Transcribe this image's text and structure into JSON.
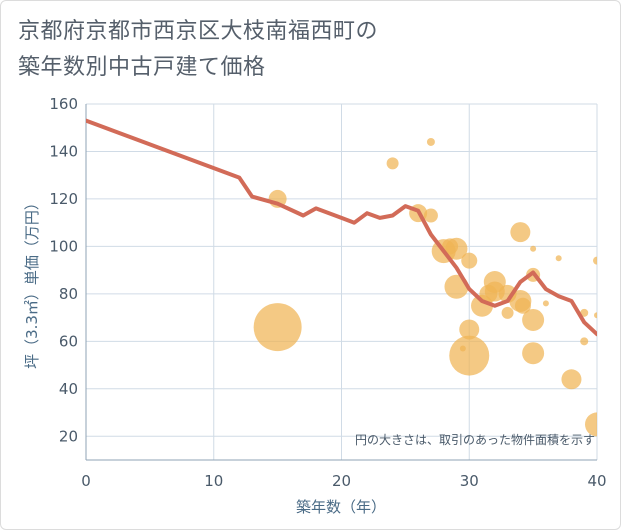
{
  "title_line1": "京都府京都市西京区大枝南福西町の",
  "title_line2": "築年数別中古戸建て価格",
  "chart_data": {
    "type": "scatter",
    "xlabel": "築年数（年）",
    "ylabel": "坪（3.3㎡）単価（万円）",
    "xlim": [
      0,
      40
    ],
    "ylim": [
      10,
      160
    ],
    "x_ticks": [
      0,
      10,
      20,
      30,
      40
    ],
    "y_ticks": [
      20,
      40,
      60,
      80,
      100,
      120,
      140,
      160
    ],
    "grid": true,
    "note": "円の大きさは、取引のあった物件面積を示す",
    "colors": {
      "bubble": "#f0b455",
      "line": "#d26b58",
      "grid": "#d0dbe6"
    },
    "points": [
      {
        "x": 15,
        "y": 66,
        "s": 24
      },
      {
        "x": 15,
        "y": 120,
        "s": 9
      },
      {
        "x": 24,
        "y": 135,
        "s": 6
      },
      {
        "x": 27,
        "y": 144,
        "s": 4
      },
      {
        "x": 26,
        "y": 114,
        "s": 9
      },
      {
        "x": 27,
        "y": 113,
        "s": 7
      },
      {
        "x": 28,
        "y": 98,
        "s": 12
      },
      {
        "x": 28.5,
        "y": 100,
        "s": 8
      },
      {
        "x": 29,
        "y": 99,
        "s": 11
      },
      {
        "x": 29,
        "y": 83,
        "s": 12
      },
      {
        "x": 29.5,
        "y": 57,
        "s": 3
      },
      {
        "x": 30,
        "y": 94,
        "s": 8
      },
      {
        "x": 30,
        "y": 54,
        "s": 20
      },
      {
        "x": 30,
        "y": 65,
        "s": 10
      },
      {
        "x": 31,
        "y": 75,
        "s": 11
      },
      {
        "x": 31.5,
        "y": 80,
        "s": 9
      },
      {
        "x": 32,
        "y": 85,
        "s": 11
      },
      {
        "x": 32,
        "y": 81,
        "s": 10
      },
      {
        "x": 33,
        "y": 80,
        "s": 9
      },
      {
        "x": 33,
        "y": 72,
        "s": 6
      },
      {
        "x": 34,
        "y": 106,
        "s": 10
      },
      {
        "x": 34,
        "y": 77,
        "s": 11
      },
      {
        "x": 34.2,
        "y": 75,
        "s": 8
      },
      {
        "x": 35,
        "y": 99,
        "s": 3
      },
      {
        "x": 35,
        "y": 88,
        "s": 7
      },
      {
        "x": 35,
        "y": 69,
        "s": 11
      },
      {
        "x": 35,
        "y": 55,
        "s": 11
      },
      {
        "x": 36,
        "y": 76,
        "s": 3
      },
      {
        "x": 37,
        "y": 95,
        "s": 3
      },
      {
        "x": 38,
        "y": 44,
        "s": 10
      },
      {
        "x": 39,
        "y": 72,
        "s": 4
      },
      {
        "x": 39,
        "y": 60,
        "s": 4
      },
      {
        "x": 40,
        "y": 94,
        "s": 4
      },
      {
        "x": 40,
        "y": 71,
        "s": 3
      },
      {
        "x": 40,
        "y": 25,
        "s": 12
      }
    ],
    "trend": {
      "x": [
        0,
        2,
        4,
        6,
        8,
        10,
        12,
        13,
        15,
        17,
        18,
        20,
        21,
        22,
        23,
        24,
        25,
        26,
        27,
        28,
        29,
        30,
        31,
        32,
        33,
        34,
        35,
        36,
        37,
        38,
        39,
        40
      ],
      "y": [
        153,
        149,
        145,
        141,
        137,
        133,
        129,
        121,
        118,
        113,
        116,
        112,
        110,
        114,
        112,
        113,
        117,
        115,
        105,
        98,
        91,
        82,
        77,
        75,
        77,
        85,
        89,
        82,
        79,
        77,
        68,
        63
      ]
    }
  }
}
